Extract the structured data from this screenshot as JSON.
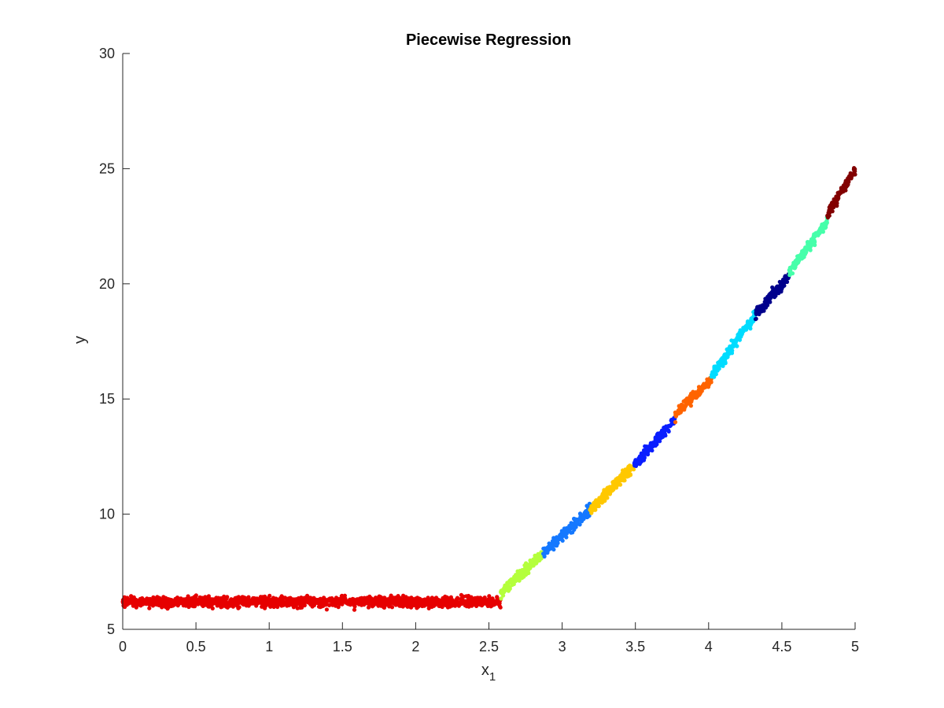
{
  "chart_data": {
    "type": "scatter",
    "title": "Piecewise Regression",
    "xlabel": "x",
    "xlabel_subscript": "1",
    "ylabel": "y",
    "xlim": [
      0,
      5
    ],
    "ylim": [
      5,
      30
    ],
    "xticks": [
      0,
      0.5,
      1,
      1.5,
      2,
      2.5,
      3,
      3.5,
      4,
      4.5,
      5
    ],
    "xtick_labels": [
      "0",
      "0.5",
      "1",
      "1.5",
      "2",
      "2.5",
      "3",
      "3.5",
      "4",
      "4.5",
      "5"
    ],
    "yticks": [
      5,
      10,
      15,
      20,
      25,
      30
    ],
    "ytick_labels": [
      "5",
      "10",
      "15",
      "20",
      "25",
      "30"
    ],
    "grid": false,
    "legend": "none",
    "noise_y": 0.22,
    "series": [
      {
        "color": "#e60000",
        "x_range": [
          0.0,
          2.58
        ],
        "y_at_start": 6.2,
        "y_at_end": 6.2,
        "points": 1500
      },
      {
        "color": "#b4ff3c",
        "x_range": [
          2.58,
          2.87
        ],
        "y_at_start": 6.6,
        "y_at_end": 8.3,
        "points": 180
      },
      {
        "color": "#1478ff",
        "x_range": [
          2.87,
          3.19
        ],
        "y_at_start": 8.3,
        "y_at_end": 10.2,
        "points": 200
      },
      {
        "color": "#ffc800",
        "x_range": [
          3.19,
          3.49
        ],
        "y_at_start": 10.2,
        "y_at_end": 12.1,
        "points": 180
      },
      {
        "color": "#0a1eff",
        "x_range": [
          3.49,
          3.77
        ],
        "y_at_start": 12.1,
        "y_at_end": 14.1,
        "points": 170
      },
      {
        "color": "#ff6400",
        "x_range": [
          3.77,
          4.02
        ],
        "y_at_start": 14.3,
        "y_at_end": 15.9,
        "points": 150
      },
      {
        "color": "#00dcff",
        "x_range": [
          4.02,
          4.32
        ],
        "y_at_start": 16.0,
        "y_at_end": 18.7,
        "points": 180
      },
      {
        "color": "#00008c",
        "x_range": [
          4.32,
          4.55
        ],
        "y_at_start": 18.7,
        "y_at_end": 20.3,
        "points": 140
      },
      {
        "color": "#46ffaa",
        "x_range": [
          4.55,
          4.81
        ],
        "y_at_start": 20.5,
        "y_at_end": 22.7,
        "points": 160
      },
      {
        "color": "#820000",
        "x_range": [
          4.81,
          5.0
        ],
        "y_at_start": 23.0,
        "y_at_end": 25.0,
        "points": 120
      }
    ]
  }
}
